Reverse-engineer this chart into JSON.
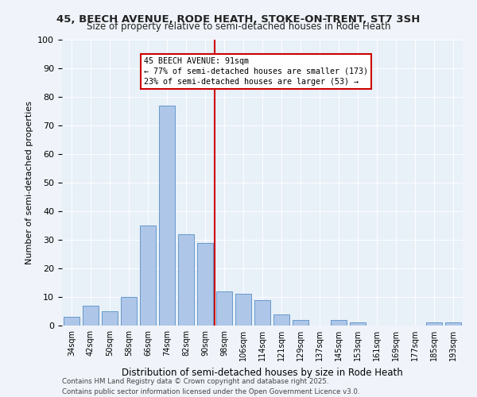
{
  "title1": "45, BEECH AVENUE, RODE HEATH, STOKE-ON-TRENT, ST7 3SH",
  "title2": "Size of property relative to semi-detached houses in Rode Heath",
  "xlabel": "Distribution of semi-detached houses by size in Rode Heath",
  "ylabel": "Number of semi-detached properties",
  "categories": [
    "34sqm",
    "42sqm",
    "50sqm",
    "58sqm",
    "66sqm",
    "74sqm",
    "82sqm",
    "90sqm",
    "98sqm",
    "106sqm",
    "114sqm",
    "121sqm",
    "129sqm",
    "137sqm",
    "145sqm",
    "153sqm",
    "161sqm",
    "169sqm",
    "177sqm",
    "185sqm",
    "193sqm"
  ],
  "values": [
    3,
    7,
    5,
    10,
    35,
    77,
    32,
    29,
    12,
    11,
    9,
    4,
    2,
    0,
    2,
    1,
    0,
    0,
    0,
    1,
    1
  ],
  "bar_color": "#aec6e8",
  "bar_edge_color": "#6699cc",
  "property_line_x": 91,
  "property_size": 91,
  "annotation_title": "45 BEECH AVENUE: 91sqm",
  "annotation_line1": "← 77% of semi-detached houses are smaller (173)",
  "annotation_line2": "23% of semi-detached houses are larger (53) →",
  "annotation_box_color": "#ffffff",
  "annotation_box_edge": "#cc0000",
  "vline_color": "#cc0000",
  "ylim": [
    0,
    100
  ],
  "yticks": [
    0,
    10,
    20,
    30,
    40,
    50,
    60,
    70,
    80,
    90,
    100
  ],
  "footer1": "Contains HM Land Registry data © Crown copyright and database right 2025.",
  "footer2": "Contains public sector information licensed under the Open Government Licence v3.0.",
  "bg_color": "#e8f0f8",
  "bar_width": 0.8
}
